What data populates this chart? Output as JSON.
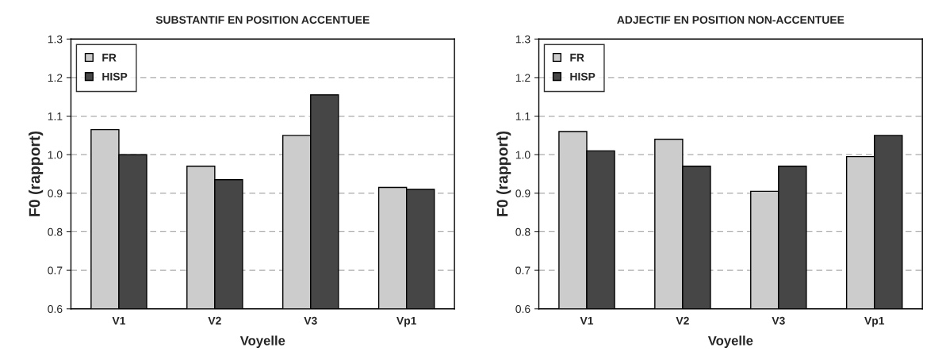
{
  "chart_data": [
    {
      "type": "bar",
      "title": "SUBSTANTIF EN POSITION ACCENTUEE",
      "xlabel": "Voyelle",
      "ylabel": "F0 (rapport)",
      "categories": [
        "V1",
        "V2",
        "V3",
        "Vp1"
      ],
      "series": [
        {
          "name": "FR",
          "color": "#cccccc",
          "values": [
            1.065,
            0.97,
            1.05,
            0.915
          ]
        },
        {
          "name": "HISP",
          "color": "#464646",
          "values": [
            1.0,
            0.935,
            1.155,
            0.91
          ]
        }
      ],
      "ylim": [
        0.6,
        1.3
      ],
      "yticks": [
        {
          "value": 0.6,
          "label": "0.6"
        },
        {
          "value": 0.7,
          "label": "0.7"
        },
        {
          "value": 0.8,
          "label": "0.8"
        },
        {
          "value": 0.9,
          "label": "0.9"
        },
        {
          "value": 1.0,
          "label": "1.0"
        },
        {
          "value": 1.1,
          "label": "1.1"
        },
        {
          "value": 1.2,
          "label": "1.2"
        },
        {
          "value": 1.3,
          "label": "1.3"
        }
      ],
      "grid": "y",
      "legend": "top left"
    },
    {
      "type": "bar",
      "title": "ADJECTIF EN POSITION NON-ACCENTUEE",
      "xlabel": "Voyelle",
      "ylabel": "F0 (rapport)",
      "categories": [
        "V1",
        "V2",
        "V3",
        "Vp1"
      ],
      "series": [
        {
          "name": "FR",
          "color": "#cccccc",
          "values": [
            1.06,
            1.04,
            0.905,
            0.995
          ]
        },
        {
          "name": "HISP",
          "color": "#464646",
          "values": [
            1.01,
            0.97,
            0.97,
            1.05
          ]
        }
      ],
      "ylim": [
        0.6,
        1.3
      ],
      "yticks": [
        {
          "value": 0.6,
          "label": "0.6"
        },
        {
          "value": 0.7,
          "label": "0.7"
        },
        {
          "value": 0.8,
          "label": "0.8"
        },
        {
          "value": 0.9,
          "label": "0.9"
        },
        {
          "value": 1.0,
          "label": "1.0"
        },
        {
          "value": 1.1,
          "label": "1.1"
        },
        {
          "value": 1.2,
          "label": "1.2"
        },
        {
          "value": 1.3,
          "label": "1.3"
        }
      ],
      "grid": "y",
      "legend": "top left"
    }
  ]
}
